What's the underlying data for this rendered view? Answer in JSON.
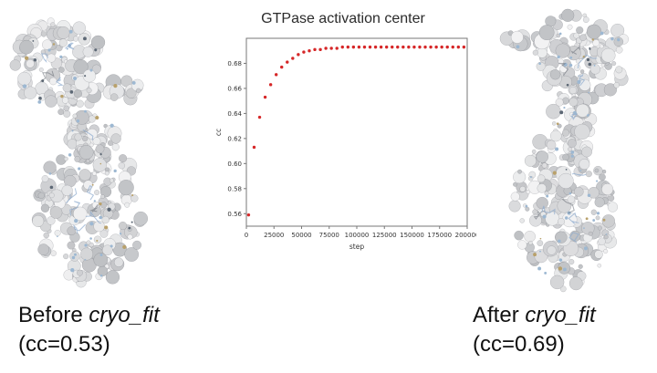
{
  "captions": {
    "before": {
      "prefix": "Before ",
      "name": "cryo_fit",
      "cc": "(cc=0.53)"
    },
    "after": {
      "prefix": "After ",
      "name": "cryo_fit",
      "cc": "(cc=0.69)"
    }
  },
  "chart_data": {
    "type": "scatter",
    "title": "GTPase activation center",
    "xlabel": "step",
    "ylabel": "cc",
    "xlim": [
      0,
      200000
    ],
    "ylim": [
      0.55,
      0.7
    ],
    "x_ticks": [
      0,
      25000,
      50000,
      75000,
      100000,
      125000,
      150000,
      175000,
      200000
    ],
    "y_ticks": [
      0.56,
      0.58,
      0.6,
      0.62,
      0.64,
      0.66,
      0.68
    ],
    "marker_color": "#d62728",
    "grid": false,
    "legend": "none",
    "series": [
      {
        "name": "cc",
        "x": [
          2000,
          7000,
          12000,
          17000,
          22000,
          27000,
          32000,
          37000,
          42000,
          47000,
          52000,
          57000,
          62000,
          67000,
          72000,
          77000,
          82000,
          87000,
          92000,
          97000,
          102000,
          107000,
          112000,
          117000,
          122000,
          127000,
          132000,
          137000,
          142000,
          147000,
          152000,
          157000,
          162000,
          167000,
          172000,
          177000,
          182000,
          187000,
          192000,
          197000
        ],
        "y": [
          0.559,
          0.613,
          0.637,
          0.653,
          0.663,
          0.671,
          0.677,
          0.681,
          0.684,
          0.687,
          0.689,
          0.69,
          0.691,
          0.691,
          0.692,
          0.692,
          0.692,
          0.693,
          0.693,
          0.693,
          0.693,
          0.693,
          0.693,
          0.693,
          0.693,
          0.693,
          0.693,
          0.693,
          0.693,
          0.693,
          0.693,
          0.693,
          0.693,
          0.693,
          0.693,
          0.693,
          0.693,
          0.693,
          0.693,
          0.693
        ]
      }
    ]
  }
}
